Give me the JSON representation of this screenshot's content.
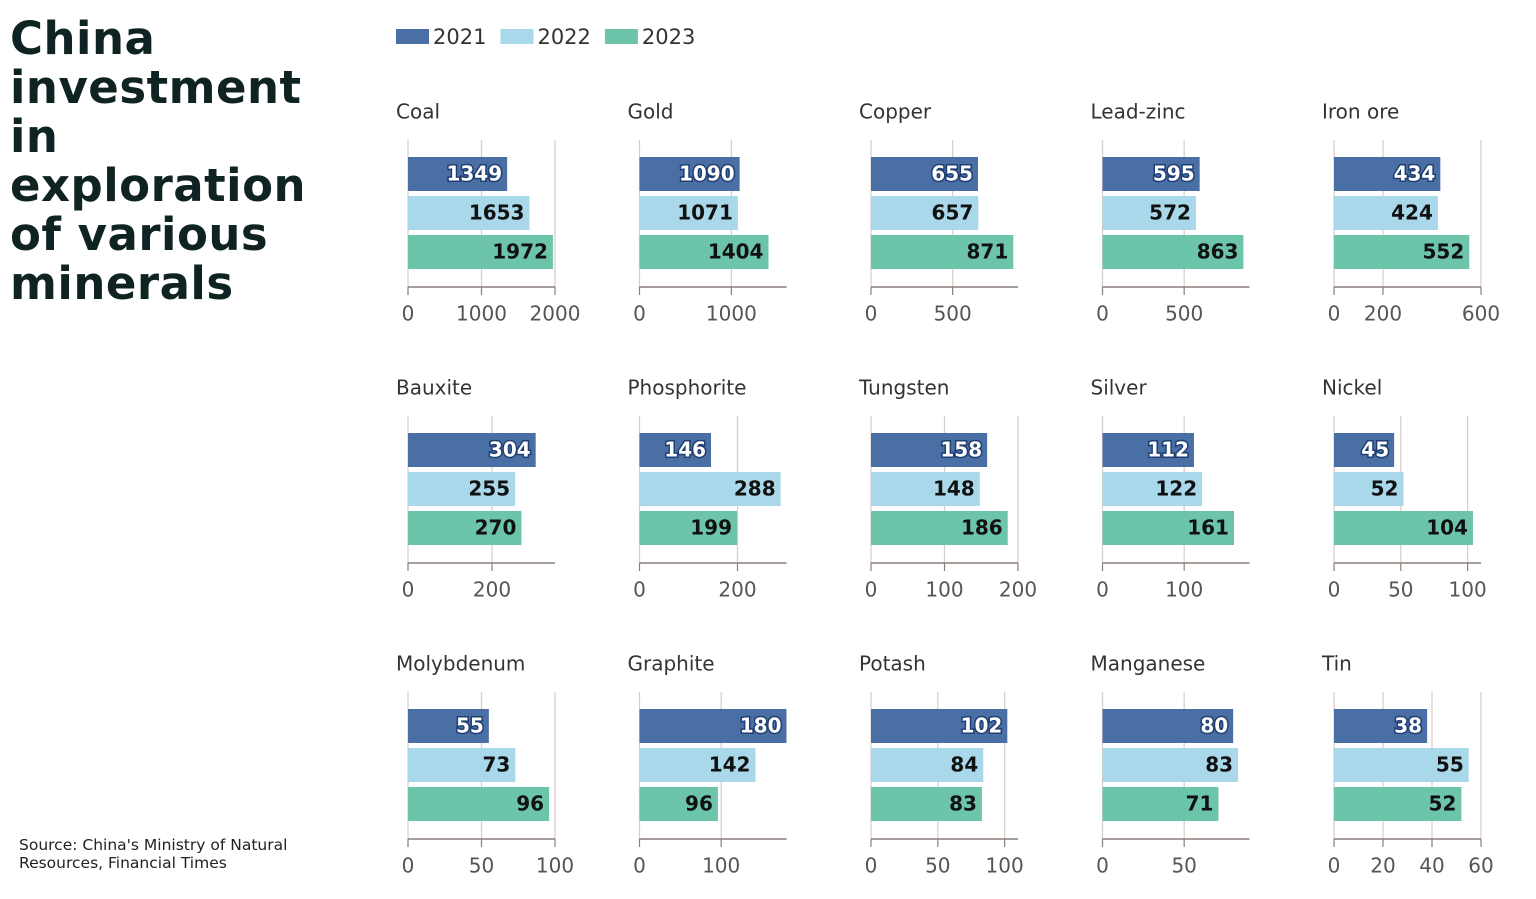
{
  "title": "China investment in exploration of various minerals",
  "source": "Source: China's Ministry of Natural Resources, Financial Times",
  "chart_data": [
    {
      "type": "bar",
      "orientation": "horizontal",
      "title": "Coal",
      "xlim": [
        0,
        2000
      ],
      "xticks": [
        0,
        1000,
        2000
      ],
      "grid": true,
      "series": [
        {
          "name": "2021",
          "color": "#4a6fa5",
          "values": [
            1349
          ]
        },
        {
          "name": "2022",
          "color": "#a8d8ea",
          "values": [
            1653
          ]
        },
        {
          "name": "2023",
          "color": "#6cc4ab",
          "values": [
            1972
          ]
        }
      ]
    },
    {
      "type": "bar",
      "orientation": "horizontal",
      "title": "Gold",
      "xlim": [
        0,
        1600
      ],
      "xticks": [
        0,
        1000
      ],
      "grid": true,
      "series": [
        {
          "name": "2021",
          "color": "#4a6fa5",
          "values": [
            1090
          ]
        },
        {
          "name": "2022",
          "color": "#a8d8ea",
          "values": [
            1071
          ]
        },
        {
          "name": "2023",
          "color": "#6cc4ab",
          "values": [
            1404
          ]
        }
      ]
    },
    {
      "type": "bar",
      "orientation": "horizontal",
      "title": "Copper",
      "xlim": [
        0,
        900
      ],
      "xticks": [
        0,
        500
      ],
      "grid": true,
      "series": [
        {
          "name": "2021",
          "color": "#4a6fa5",
          "values": [
            655
          ]
        },
        {
          "name": "2022",
          "color": "#a8d8ea",
          "values": [
            657
          ]
        },
        {
          "name": "2023",
          "color": "#6cc4ab",
          "values": [
            871
          ]
        }
      ]
    },
    {
      "type": "bar",
      "orientation": "horizontal",
      "title": "Lead-zinc",
      "xlim": [
        0,
        900
      ],
      "xticks": [
        0,
        500
      ],
      "grid": true,
      "series": [
        {
          "name": "2021",
          "color": "#4a6fa5",
          "values": [
            595
          ]
        },
        {
          "name": "2022",
          "color": "#a8d8ea",
          "values": [
            572
          ]
        },
        {
          "name": "2023",
          "color": "#6cc4ab",
          "values": [
            863
          ]
        }
      ]
    },
    {
      "type": "bar",
      "orientation": "horizontal",
      "title": "Iron ore",
      "xlim": [
        0,
        600
      ],
      "xticks": [
        0,
        200,
        600
      ],
      "grid": true,
      "series": [
        {
          "name": "2021",
          "color": "#4a6fa5",
          "values": [
            434
          ]
        },
        {
          "name": "2022",
          "color": "#a8d8ea",
          "values": [
            424
          ]
        },
        {
          "name": "2023",
          "color": "#6cc4ab",
          "values": [
            552
          ]
        }
      ]
    },
    {
      "type": "bar",
      "orientation": "horizontal",
      "title": "Bauxite",
      "xlim": [
        0,
        350
      ],
      "xticks": [
        0,
        200
      ],
      "grid": true,
      "series": [
        {
          "name": "2021",
          "color": "#4a6fa5",
          "values": [
            304
          ]
        },
        {
          "name": "2022",
          "color": "#a8d8ea",
          "values": [
            255
          ]
        },
        {
          "name": "2023",
          "color": "#6cc4ab",
          "values": [
            270
          ]
        }
      ]
    },
    {
      "type": "bar",
      "orientation": "horizontal",
      "title": "Phosphorite",
      "xlim": [
        0,
        300
      ],
      "xticks": [
        0,
        200
      ],
      "grid": true,
      "series": [
        {
          "name": "2021",
          "color": "#4a6fa5",
          "values": [
            146
          ]
        },
        {
          "name": "2022",
          "color": "#a8d8ea",
          "values": [
            288
          ]
        },
        {
          "name": "2023",
          "color": "#6cc4ab",
          "values": [
            199
          ]
        }
      ]
    },
    {
      "type": "bar",
      "orientation": "horizontal",
      "title": "Tungsten",
      "xlim": [
        0,
        200
      ],
      "xticks": [
        0,
        100,
        200
      ],
      "grid": true,
      "series": [
        {
          "name": "2021",
          "color": "#4a6fa5",
          "values": [
            158
          ]
        },
        {
          "name": "2022",
          "color": "#a8d8ea",
          "values": [
            148
          ]
        },
        {
          "name": "2023",
          "color": "#6cc4ab",
          "values": [
            186
          ]
        }
      ]
    },
    {
      "type": "bar",
      "orientation": "horizontal",
      "title": "Silver",
      "xlim": [
        0,
        180
      ],
      "xticks": [
        0,
        100
      ],
      "grid": true,
      "series": [
        {
          "name": "2021",
          "color": "#4a6fa5",
          "values": [
            112
          ]
        },
        {
          "name": "2022",
          "color": "#a8d8ea",
          "values": [
            122
          ]
        },
        {
          "name": "2023",
          "color": "#6cc4ab",
          "values": [
            161
          ]
        }
      ]
    },
    {
      "type": "bar",
      "orientation": "horizontal",
      "title": "Nickel",
      "xlim": [
        0,
        110
      ],
      "xticks": [
        0,
        50,
        100
      ],
      "grid": true,
      "series": [
        {
          "name": "2021",
          "color": "#4a6fa5",
          "values": [
            45
          ]
        },
        {
          "name": "2022",
          "color": "#a8d8ea",
          "values": [
            52
          ]
        },
        {
          "name": "2023",
          "color": "#6cc4ab",
          "values": [
            104
          ]
        }
      ]
    },
    {
      "type": "bar",
      "orientation": "horizontal",
      "title": "Molybdenum",
      "xlim": [
        0,
        100
      ],
      "xticks": [
        0,
        50,
        100
      ],
      "grid": true,
      "series": [
        {
          "name": "2021",
          "color": "#4a6fa5",
          "values": [
            55
          ]
        },
        {
          "name": "2022",
          "color": "#a8d8ea",
          "values": [
            73
          ]
        },
        {
          "name": "2023",
          "color": "#6cc4ab",
          "values": [
            96
          ]
        }
      ]
    },
    {
      "type": "bar",
      "orientation": "horizontal",
      "title": "Graphite",
      "xlim": [
        0,
        180
      ],
      "xticks": [
        0,
        100
      ],
      "grid": true,
      "series": [
        {
          "name": "2021",
          "color": "#4a6fa5",
          "values": [
            180
          ]
        },
        {
          "name": "2022",
          "color": "#a8d8ea",
          "values": [
            142
          ]
        },
        {
          "name": "2023",
          "color": "#6cc4ab",
          "values": [
            96
          ]
        }
      ]
    },
    {
      "type": "bar",
      "orientation": "horizontal",
      "title": "Potash",
      "xlim": [
        0,
        110
      ],
      "xticks": [
        0,
        50,
        100
      ],
      "grid": true,
      "series": [
        {
          "name": "2021",
          "color": "#4a6fa5",
          "values": [
            102
          ]
        },
        {
          "name": "2022",
          "color": "#a8d8ea",
          "values": [
            84
          ]
        },
        {
          "name": "2023",
          "color": "#6cc4ab",
          "values": [
            83
          ]
        }
      ]
    },
    {
      "type": "bar",
      "orientation": "horizontal",
      "title": "Manganese",
      "xlim": [
        0,
        90
      ],
      "xticks": [
        0,
        50
      ],
      "grid": true,
      "series": [
        {
          "name": "2021",
          "color": "#4a6fa5",
          "values": [
            80
          ]
        },
        {
          "name": "2022",
          "color": "#a8d8ea",
          "values": [
            83
          ]
        },
        {
          "name": "2023",
          "color": "#6cc4ab",
          "values": [
            71
          ]
        }
      ]
    },
    {
      "type": "bar",
      "orientation": "horizontal",
      "title": "Tin",
      "xlim": [
        0,
        60
      ],
      "xticks": [
        0,
        20,
        40,
        60
      ],
      "grid": true,
      "series": [
        {
          "name": "2021",
          "color": "#4a6fa5",
          "values": [
            38
          ]
        },
        {
          "name": "2022",
          "color": "#a8d8ea",
          "values": [
            55
          ]
        },
        {
          "name": "2023",
          "color": "#6cc4ab",
          "values": [
            52
          ]
        }
      ]
    }
  ]
}
